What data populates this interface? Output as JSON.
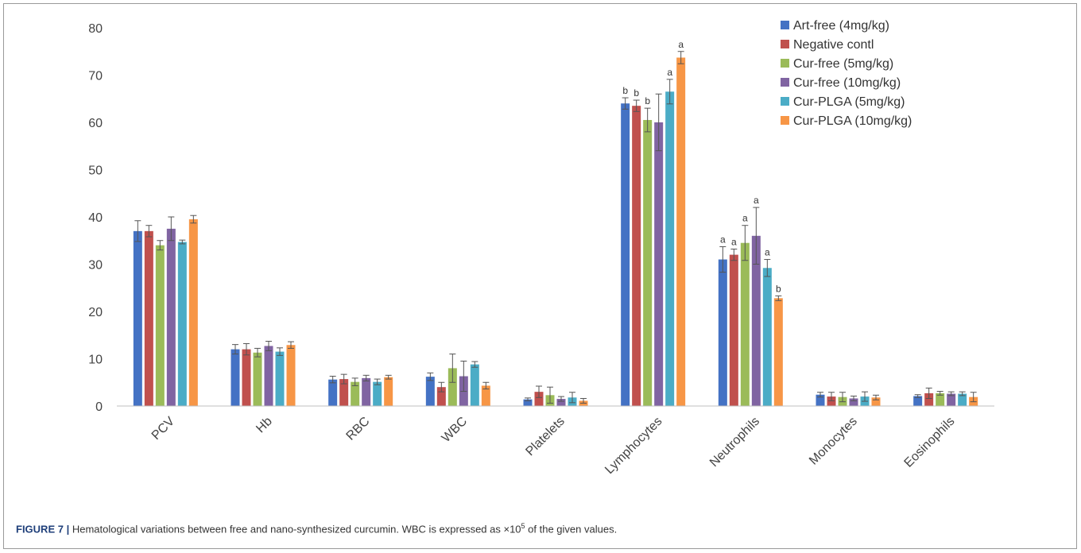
{
  "figure": {
    "caption_label": "FIGURE 7 |",
    "caption_text": "Hematological variations between free and nano-synthesized curcumin. WBC is expressed as ×10",
    "caption_superscript": "5",
    "caption_tail": " of the given values."
  },
  "chart_data": {
    "type": "bar",
    "title": "",
    "xlabel": "",
    "ylabel": "",
    "ylim": [
      0,
      80
    ],
    "yticks": [
      0,
      10,
      20,
      30,
      40,
      50,
      60,
      70,
      80
    ],
    "grid": false,
    "legend_position": "top-right",
    "categories": [
      "PCV",
      "Hb",
      "RBC",
      "WBC",
      "Platelets",
      "Lymphocytes",
      "Neutrophils",
      "Monocytes",
      "Eosinophils"
    ],
    "series": [
      {
        "name": "Art-free (4mg/kg)",
        "color": "#4472c4",
        "values": [
          37,
          12,
          5.6,
          6.2,
          1.4,
          64,
          31,
          2.4,
          2.1
        ],
        "errors": [
          2.2,
          1.0,
          0.7,
          0.8,
          0.3,
          1.2,
          2.7,
          0.5,
          0.3
        ]
      },
      {
        "name": "Negative contl",
        "color": "#c0504d",
        "values": [
          37,
          12,
          5.7,
          4,
          3,
          63.5,
          32,
          2,
          2.7
        ],
        "errors": [
          1.2,
          1.2,
          1.0,
          1.0,
          1.2,
          1.2,
          1.2,
          0.9,
          1.1
        ]
      },
      {
        "name": "Cur-free (5mg/kg)",
        "color": "#9bbb59",
        "values": [
          34,
          11.3,
          5.1,
          8,
          2.3,
          60.5,
          34.5,
          1.9,
          2.7
        ],
        "errors": [
          1.0,
          0.9,
          0.8,
          3.0,
          1.7,
          2.5,
          3.7,
          1.0,
          0.4
        ]
      },
      {
        "name": "Cur-free (10mg/kg)",
        "color": "#8064a2",
        "values": [
          37.5,
          12.7,
          5.9,
          6.3,
          1.5,
          60,
          36,
          1.6,
          2.6
        ],
        "errors": [
          2.5,
          1.0,
          0.6,
          3.2,
          0.5,
          6.0,
          6.0,
          0.5,
          0.4
        ]
      },
      {
        "name": "Cur-PLGA (5mg/kg)",
        "color": "#4bacc6",
        "values": [
          34.7,
          11.5,
          5.1,
          8.8,
          1.8,
          66.5,
          29.2,
          2,
          2.6
        ],
        "errors": [
          0.4,
          0.8,
          0.6,
          0.6,
          1.1,
          2.6,
          1.8,
          1.0,
          0.4
        ]
      },
      {
        "name": "Cur-PLGA (10mg/kg)",
        "color": "#f79646",
        "values": [
          39.5,
          12.9,
          6.1,
          4.3,
          1.1,
          73.7,
          22.8,
          1.8,
          1.9
        ],
        "errors": [
          0.8,
          0.7,
          0.4,
          0.7,
          0.5,
          1.3,
          0.5,
          0.5,
          1.0
        ]
      }
    ],
    "annotations": [
      {
        "category": "Lymphocytes",
        "series": 0,
        "text": "b"
      },
      {
        "category": "Lymphocytes",
        "series": 1,
        "text": "b"
      },
      {
        "category": "Lymphocytes",
        "series": 2,
        "text": "b"
      },
      {
        "category": "Lymphocytes",
        "series": 4,
        "text": "a"
      },
      {
        "category": "Lymphocytes",
        "series": 5,
        "text": "a"
      },
      {
        "category": "Neutrophils",
        "series": 0,
        "text": "a"
      },
      {
        "category": "Neutrophils",
        "series": 1,
        "text": "a"
      },
      {
        "category": "Neutrophils",
        "series": 2,
        "text": "a"
      },
      {
        "category": "Neutrophils",
        "series": 3,
        "text": "a"
      },
      {
        "category": "Neutrophils",
        "series": 4,
        "text": "a"
      },
      {
        "category": "Neutrophils",
        "series": 5,
        "text": "b"
      }
    ]
  }
}
